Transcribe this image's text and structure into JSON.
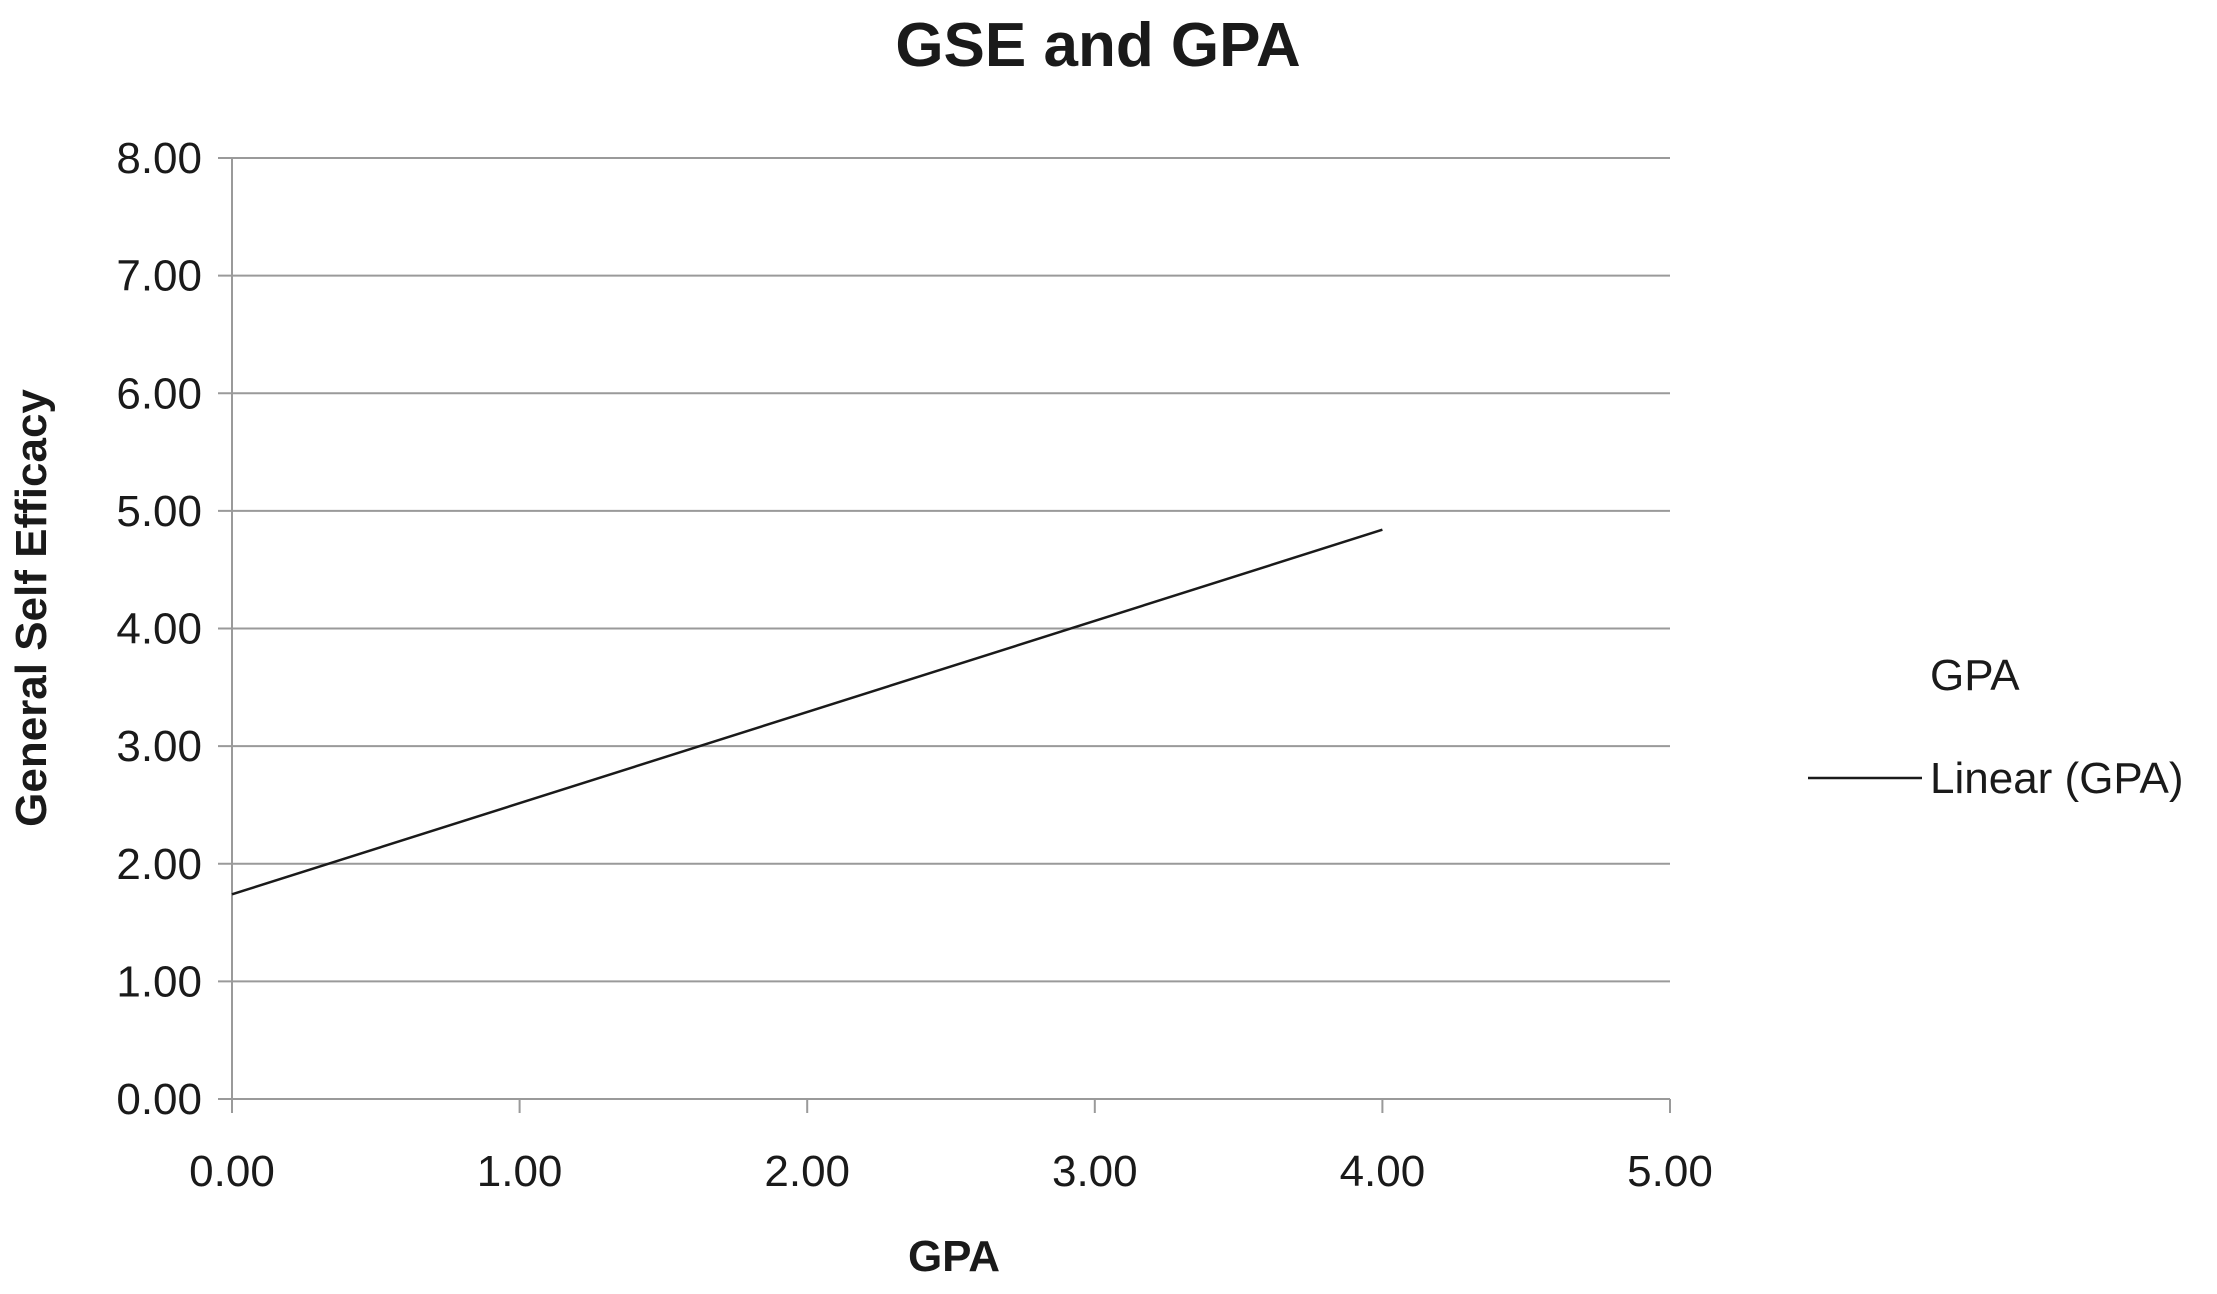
{
  "chart_data": {
    "type": "line",
    "title": "GSE and GPA",
    "xlabel": "GPA",
    "ylabel": "General Self Efficacy",
    "xlim": [
      0,
      5
    ],
    "ylim": [
      0,
      8
    ],
    "x_ticks": [
      "0.00",
      "1.00",
      "2.00",
      "3.00",
      "4.00",
      "5.00"
    ],
    "y_ticks": [
      "0.00",
      "1.00",
      "2.00",
      "3.00",
      "4.00",
      "5.00",
      "6.00",
      "7.00",
      "8.00"
    ],
    "grid": "horizontal",
    "legend_position": "right",
    "legend": {
      "entries": [
        {
          "label": "GPA",
          "marker": "none"
        },
        {
          "label": "Linear (GPA)",
          "marker": "line"
        }
      ]
    },
    "series": [
      {
        "name": "Linear (GPA)",
        "style": "solid",
        "color": "#1a1a1a",
        "x": [
          0,
          4
        ],
        "y": [
          1.74,
          4.84
        ]
      }
    ]
  }
}
